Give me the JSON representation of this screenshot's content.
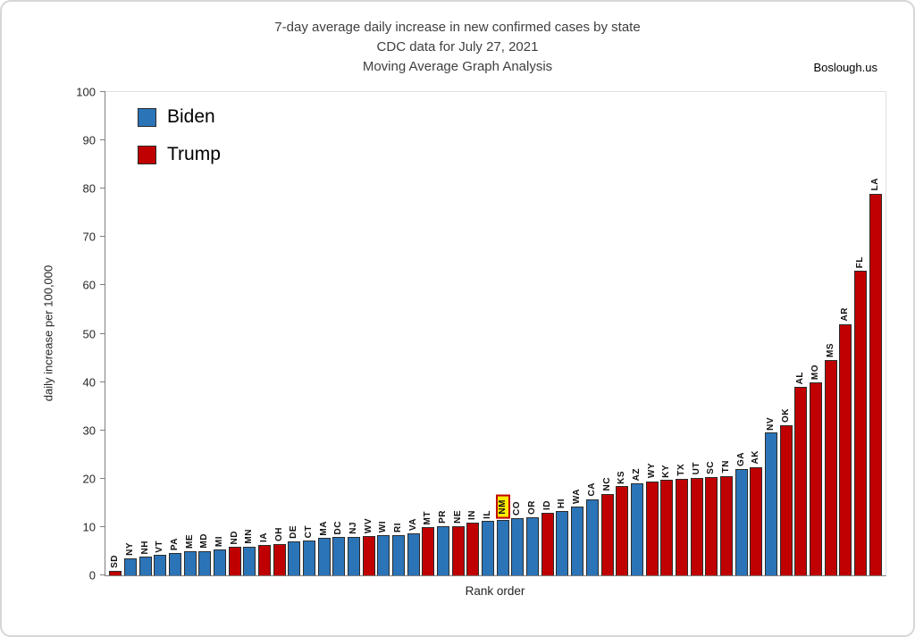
{
  "watermark": "Boslough.us",
  "chart_data": {
    "type": "bar",
    "title": "7-day average daily increase in new confirmed cases by state",
    "subtitle1": "CDC data for July 27, 2021",
    "subtitle2": "Moving Average Graph Analysis",
    "xlabel": "Rank order",
    "ylabel": "daily increase per 100,000",
    "ylim": [
      0,
      100
    ],
    "ytick_step": 10,
    "legend_position": "top-left-inside",
    "grid": false,
    "legend": [
      {
        "label": "Biden",
        "color": "#2b74b8"
      },
      {
        "label": "Trump",
        "color": "#c00000"
      }
    ],
    "highlighted_state": "NM",
    "highlight_style": {
      "background": "#ffec00",
      "border": "#c00000"
    },
    "bars": [
      {
        "state": "SD",
        "value": 1.0,
        "party": "Trump"
      },
      {
        "state": "NY",
        "value": 3.5,
        "party": "Biden"
      },
      {
        "state": "NH",
        "value": 3.8,
        "party": "Biden"
      },
      {
        "state": "VT",
        "value": 4.2,
        "party": "Biden"
      },
      {
        "state": "PA",
        "value": 4.6,
        "party": "Biden"
      },
      {
        "state": "ME",
        "value": 5.0,
        "party": "Biden"
      },
      {
        "state": "MD",
        "value": 5.0,
        "party": "Biden"
      },
      {
        "state": "MI",
        "value": 5.3,
        "party": "Biden"
      },
      {
        "state": "ND",
        "value": 5.9,
        "party": "Trump"
      },
      {
        "state": "MN",
        "value": 6.0,
        "party": "Biden"
      },
      {
        "state": "IA",
        "value": 6.3,
        "party": "Trump"
      },
      {
        "state": "OH",
        "value": 6.5,
        "party": "Trump"
      },
      {
        "state": "DE",
        "value": 7.0,
        "party": "Biden"
      },
      {
        "state": "CT",
        "value": 7.2,
        "party": "Biden"
      },
      {
        "state": "MA",
        "value": 7.7,
        "party": "Biden"
      },
      {
        "state": "DC",
        "value": 7.9,
        "party": "Biden"
      },
      {
        "state": "NJ",
        "value": 8.0,
        "party": "Biden"
      },
      {
        "state": "WV",
        "value": 8.1,
        "party": "Trump"
      },
      {
        "state": "WI",
        "value": 8.3,
        "party": "Biden"
      },
      {
        "state": "RI",
        "value": 8.4,
        "party": "Biden"
      },
      {
        "state": "VA",
        "value": 8.6,
        "party": "Biden"
      },
      {
        "state": "MT",
        "value": 9.9,
        "party": "Trump"
      },
      {
        "state": "PR",
        "value": 10.1,
        "party": "Biden"
      },
      {
        "state": "NE",
        "value": 10.2,
        "party": "Trump"
      },
      {
        "state": "IN",
        "value": 11.0,
        "party": "Trump"
      },
      {
        "state": "IL",
        "value": 11.2,
        "party": "Biden"
      },
      {
        "state": "NM",
        "value": 11.4,
        "party": "Biden"
      },
      {
        "state": "CO",
        "value": 11.8,
        "party": "Biden"
      },
      {
        "state": "OR",
        "value": 12.0,
        "party": "Biden"
      },
      {
        "state": "ID",
        "value": 13.0,
        "party": "Trump"
      },
      {
        "state": "HI",
        "value": 13.4,
        "party": "Biden"
      },
      {
        "state": "WA",
        "value": 14.2,
        "party": "Biden"
      },
      {
        "state": "CA",
        "value": 15.8,
        "party": "Biden"
      },
      {
        "state": "NC",
        "value": 16.9,
        "party": "Trump"
      },
      {
        "state": "KS",
        "value": 18.4,
        "party": "Trump"
      },
      {
        "state": "AZ",
        "value": 19.0,
        "party": "Biden"
      },
      {
        "state": "WY",
        "value": 19.5,
        "party": "Trump"
      },
      {
        "state": "KY",
        "value": 19.7,
        "party": "Trump"
      },
      {
        "state": "TX",
        "value": 20.0,
        "party": "Trump"
      },
      {
        "state": "UT",
        "value": 20.2,
        "party": "Trump"
      },
      {
        "state": "SC",
        "value": 20.4,
        "party": "Trump"
      },
      {
        "state": "TN",
        "value": 20.6,
        "party": "Trump"
      },
      {
        "state": "GA",
        "value": 22.0,
        "party": "Biden"
      },
      {
        "state": "AK",
        "value": 22.4,
        "party": "Trump"
      },
      {
        "state": "NV",
        "value": 29.5,
        "party": "Biden"
      },
      {
        "state": "OK",
        "value": 31.0,
        "party": "Trump"
      },
      {
        "state": "AL",
        "value": 39.0,
        "party": "Trump"
      },
      {
        "state": "MO",
        "value": 40.0,
        "party": "Trump"
      },
      {
        "state": "MS",
        "value": 44.5,
        "party": "Trump"
      },
      {
        "state": "AR",
        "value": 52.0,
        "party": "Trump"
      },
      {
        "state": "FL",
        "value": 63.0,
        "party": "Trump"
      },
      {
        "state": "LA",
        "value": 79.0,
        "party": "Trump"
      }
    ]
  }
}
